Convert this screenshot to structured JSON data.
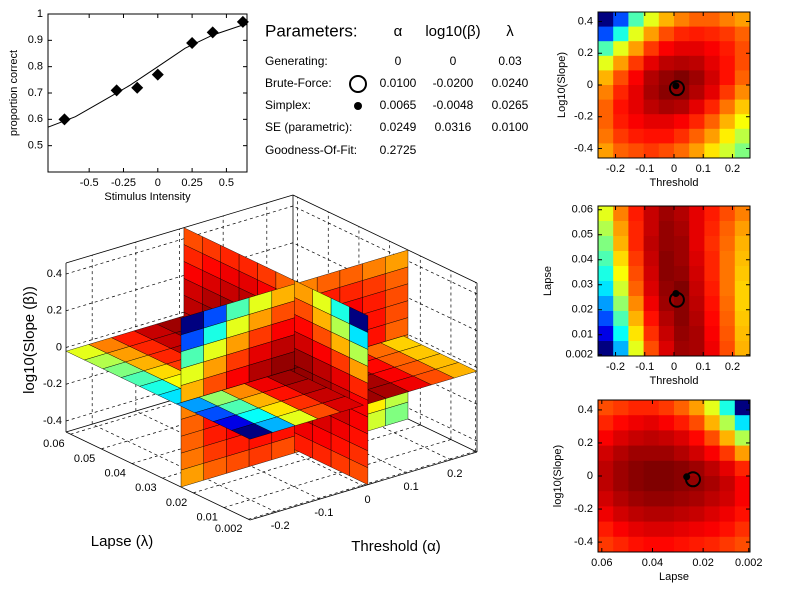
{
  "parameters": {
    "title": "Parameters:",
    "columns": [
      "α",
      "log10(β)",
      "λ"
    ],
    "rows": [
      {
        "label": "Generating:",
        "values": [
          "0",
          "0",
          "0.03"
        ]
      },
      {
        "label": "Brute-Force:",
        "values": [
          "0.0100",
          "-0.0200",
          "0.0240"
        ]
      },
      {
        "label": "Simplex:",
        "values": [
          "0.0065",
          "-0.0048",
          "0.0265"
        ]
      },
      {
        "label": "SE (parametric):",
        "values": [
          "0.0249",
          "0.0316",
          "0.0100"
        ]
      },
      {
        "label": "Goodness-Of-Fit:",
        "values": [
          "0.2725"
        ]
      }
    ]
  },
  "chart_data": [
    {
      "type": "scatter",
      "xlabel": "Stimulus Intensity",
      "ylabel": "proportion correct",
      "x": [
        -0.68,
        -0.3,
        -0.15,
        0,
        0.25,
        0.4,
        0.62
      ],
      "values": [
        0.6,
        0.71,
        0.72,
        0.77,
        0.89,
        0.93,
        0.97
      ],
      "fit": {
        "x": [
          -0.8,
          -0.6,
          -0.4,
          -0.2,
          0,
          0.2,
          0.4,
          0.6,
          0.65
        ],
        "values": [
          0.57,
          0.61,
          0.67,
          0.73,
          0.8,
          0.87,
          0.92,
          0.955,
          0.96
        ]
      },
      "color": "#000000",
      "xlim": [
        -0.8,
        0.65
      ],
      "ylim": [
        0.4,
        1
      ],
      "xticks": [
        -0.5,
        -0.25,
        0,
        0.25,
        0.5
      ],
      "yticks": [
        0.5,
        0.6,
        0.7,
        0.8,
        0.9,
        1
      ]
    },
    {
      "type": "surface3d",
      "xlabel": "Threshold (α)",
      "ylabel": "Lapse (λ)",
      "zlabel": "log10(Slope (β))",
      "xlim": [
        -0.26,
        0.26
      ],
      "ylim": [
        0.0015,
        0.0615
      ],
      "zlim": [
        -0.46,
        0.46
      ],
      "xticks": [
        -0.2,
        -0.1,
        0,
        0.1,
        0.2
      ],
      "yticks": [
        0.002,
        0.01,
        0.02,
        0.03,
        0.04,
        0.05,
        0.06
      ],
      "zticks": [
        -0.4,
        -0.2,
        0,
        0.2,
        0.4
      ],
      "slices": {
        "x": 0.01,
        "y": 0.024,
        "z": -0.02
      },
      "colormap": "jet",
      "grid": true
    },
    {
      "type": "heatmap",
      "xlabel": "Threshold",
      "ylabel": "Log10(Slope)",
      "xlim": [
        -0.26,
        0.26
      ],
      "ylim": [
        -0.46,
        0.46
      ],
      "xticks": [
        -0.2,
        -0.1,
        0,
        0.1,
        0.2
      ],
      "yticks": [
        -0.4,
        -0.2,
        0,
        0.2,
        0.4
      ],
      "colormap": "jet",
      "z": [
        [
          0.0,
          0.2,
          0.45,
          0.6,
          0.7,
          0.75,
          0.78,
          0.78,
          0.75,
          0.72
        ],
        [
          0.2,
          0.4,
          0.6,
          0.72,
          0.8,
          0.84,
          0.85,
          0.84,
          0.82,
          0.78
        ],
        [
          0.45,
          0.6,
          0.72,
          0.82,
          0.88,
          0.9,
          0.9,
          0.88,
          0.85,
          0.8
        ],
        [
          0.6,
          0.72,
          0.82,
          0.9,
          0.94,
          0.95,
          0.94,
          0.9,
          0.86,
          0.8
        ],
        [
          0.7,
          0.8,
          0.88,
          0.95,
          0.98,
          1.0,
          0.97,
          0.92,
          0.86,
          0.78
        ],
        [
          0.75,
          0.84,
          0.9,
          0.96,
          0.99,
          0.99,
          0.95,
          0.9,
          0.82,
          0.74
        ],
        [
          0.78,
          0.86,
          0.9,
          0.94,
          0.96,
          0.95,
          0.9,
          0.84,
          0.76,
          0.68
        ],
        [
          0.78,
          0.85,
          0.88,
          0.9,
          0.9,
          0.88,
          0.84,
          0.78,
          0.7,
          0.62
        ],
        [
          0.76,
          0.82,
          0.85,
          0.86,
          0.86,
          0.83,
          0.78,
          0.72,
          0.64,
          0.56
        ],
        [
          0.72,
          0.78,
          0.8,
          0.82,
          0.8,
          0.77,
          0.72,
          0.65,
          0.58,
          0.5
        ]
      ],
      "points": [
        {
          "x": [
            0.01
          ],
          "values": [
            -0.02
          ],
          "marker": "open-circle"
        },
        {
          "x": [
            0.0065
          ],
          "values": [
            -0.0048
          ],
          "marker": "dot"
        }
      ]
    },
    {
      "type": "heatmap",
      "xlabel": "Threshold",
      "ylabel": "Lapse",
      "xlim": [
        -0.26,
        0.26
      ],
      "ylim": [
        0.0015,
        0.0615
      ],
      "xticks": [
        -0.2,
        -0.1,
        0,
        0.1,
        0.2
      ],
      "yticks": [
        0.002,
        0.01,
        0.02,
        0.03,
        0.04,
        0.05,
        0.06
      ],
      "colormap": "jet",
      "z": [
        [
          0.6,
          0.75,
          0.85,
          0.93,
          0.97,
          0.95,
          0.9,
          0.85,
          0.8,
          0.75
        ],
        [
          0.55,
          0.72,
          0.84,
          0.93,
          0.98,
          0.96,
          0.9,
          0.84,
          0.78,
          0.72
        ],
        [
          0.5,
          0.7,
          0.84,
          0.94,
          0.98,
          0.97,
          0.9,
          0.83,
          0.77,
          0.7
        ],
        [
          0.45,
          0.66,
          0.82,
          0.93,
          0.99,
          0.97,
          0.91,
          0.84,
          0.76,
          0.69
        ],
        [
          0.4,
          0.62,
          0.8,
          0.92,
          0.99,
          0.98,
          0.92,
          0.84,
          0.76,
          0.68
        ],
        [
          0.35,
          0.58,
          0.78,
          0.91,
          0.98,
          1.0,
          0.93,
          0.85,
          0.76,
          0.67
        ],
        [
          0.28,
          0.52,
          0.74,
          0.89,
          0.97,
          0.99,
          0.94,
          0.86,
          0.77,
          0.67
        ],
        [
          0.2,
          0.45,
          0.7,
          0.86,
          0.95,
          0.99,
          0.95,
          0.87,
          0.78,
          0.68
        ],
        [
          0.1,
          0.38,
          0.65,
          0.83,
          0.93,
          0.98,
          0.96,
          0.88,
          0.79,
          0.69
        ],
        [
          0.0,
          0.3,
          0.6,
          0.8,
          0.91,
          0.97,
          0.96,
          0.89,
          0.8,
          0.7
        ]
      ],
      "points": [
        {
          "x": [
            0.01
          ],
          "values": [
            0.024
          ],
          "marker": "open-circle"
        },
        {
          "x": [
            0.0065
          ],
          "values": [
            0.0265
          ],
          "marker": "dot"
        }
      ]
    },
    {
      "type": "heatmap",
      "xlabel": "Lapse",
      "ylabel": "log10(Slope)",
      "xlim": [
        0.0615,
        0.0015
      ],
      "ylim": [
        -0.46,
        0.46
      ],
      "xticks": [
        0.06,
        0.04,
        0.02,
        0.002
      ],
      "yticks": [
        -0.4,
        -0.2,
        0,
        0.2,
        0.4
      ],
      "colormap": "jet",
      "z": [
        [
          0.8,
          0.82,
          0.84,
          0.84,
          0.82,
          0.78,
          0.72,
          0.6,
          0.4,
          0.0
        ],
        [
          0.84,
          0.87,
          0.89,
          0.9,
          0.88,
          0.85,
          0.8,
          0.7,
          0.55,
          0.35
        ],
        [
          0.88,
          0.91,
          0.93,
          0.94,
          0.93,
          0.91,
          0.87,
          0.8,
          0.7,
          0.55
        ],
        [
          0.92,
          0.95,
          0.97,
          0.97,
          0.97,
          0.95,
          0.92,
          0.88,
          0.82,
          0.72
        ],
        [
          0.94,
          0.97,
          0.99,
          1.0,
          1.0,
          0.99,
          0.97,
          0.94,
          0.9,
          0.84
        ],
        [
          0.94,
          0.97,
          0.99,
          1.0,
          1.0,
          0.99,
          0.98,
          0.96,
          0.93,
          0.88
        ],
        [
          0.92,
          0.95,
          0.97,
          0.98,
          0.98,
          0.97,
          0.96,
          0.94,
          0.92,
          0.88
        ],
        [
          0.89,
          0.92,
          0.94,
          0.95,
          0.95,
          0.94,
          0.93,
          0.91,
          0.89,
          0.86
        ],
        [
          0.85,
          0.88,
          0.9,
          0.91,
          0.91,
          0.9,
          0.89,
          0.88,
          0.86,
          0.83
        ],
        [
          0.82,
          0.84,
          0.86,
          0.87,
          0.87,
          0.86,
          0.85,
          0.84,
          0.82,
          0.8
        ]
      ],
      "points": [
        {
          "x": [
            0.024
          ],
          "values": [
            -0.02
          ],
          "marker": "open-circle"
        },
        {
          "x": [
            0.0265
          ],
          "values": [
            -0.0048
          ],
          "marker": "dot"
        }
      ]
    }
  ]
}
